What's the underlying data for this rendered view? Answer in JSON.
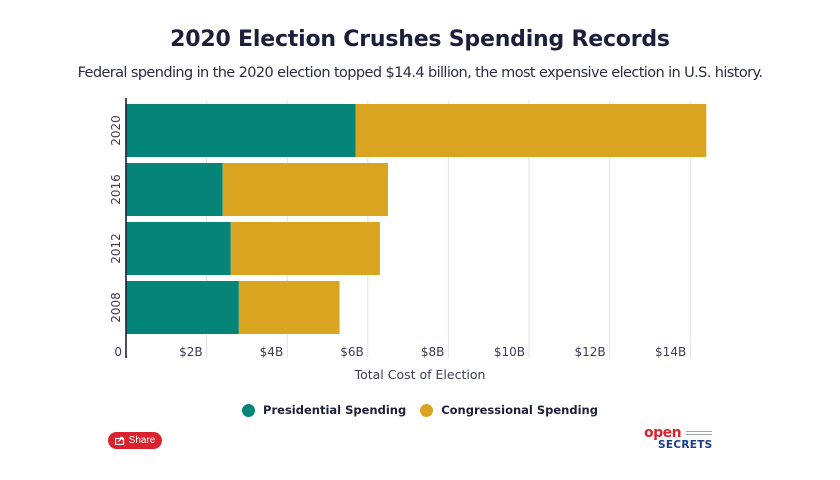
{
  "header": {
    "title": "2020 Election Crushes Spending Records",
    "subtitle": "Federal spending in the 2020 election topped $14.4 billion, the most expensive election in U.S. history."
  },
  "chart_data": {
    "type": "bar",
    "orientation": "horizontal",
    "stacked": true,
    "title": "2020 Election Crushes Spending Records",
    "subtitle": "Federal spending in the 2020 election topped $14.4 billion, the most expensive election in U.S. history.",
    "categories": [
      "2020",
      "2016",
      "2012",
      "2008"
    ],
    "series": [
      {
        "name": "Presidential Spending",
        "color": "#058478",
        "values": [
          5.7,
          2.4,
          2.6,
          2.8
        ]
      },
      {
        "name": "Congressional Spending",
        "color": "#d9a520",
        "values": [
          8.7,
          4.1,
          3.7,
          2.5
        ]
      }
    ],
    "xlabel": "Total Cost of Election",
    "ylabel": "",
    "xlim": [
      0,
      15
    ],
    "x_ticks": [
      0,
      2,
      4,
      6,
      8,
      10,
      12,
      14
    ],
    "x_tick_labels": [
      "0",
      "$2B",
      "$4B",
      "$6B",
      "$8B",
      "$10B",
      "$12B",
      "$14B"
    ],
    "units": "billions USD",
    "grid": "vertical",
    "legend_position": "bottom-center"
  },
  "footer": {
    "share_label": "Share",
    "logo_open": "open",
    "logo_secrets": "SECRETS"
  },
  "colors": {
    "axis": "#1c1f3a",
    "grid": "#e2e2ea",
    "share": "#d9232e"
  }
}
